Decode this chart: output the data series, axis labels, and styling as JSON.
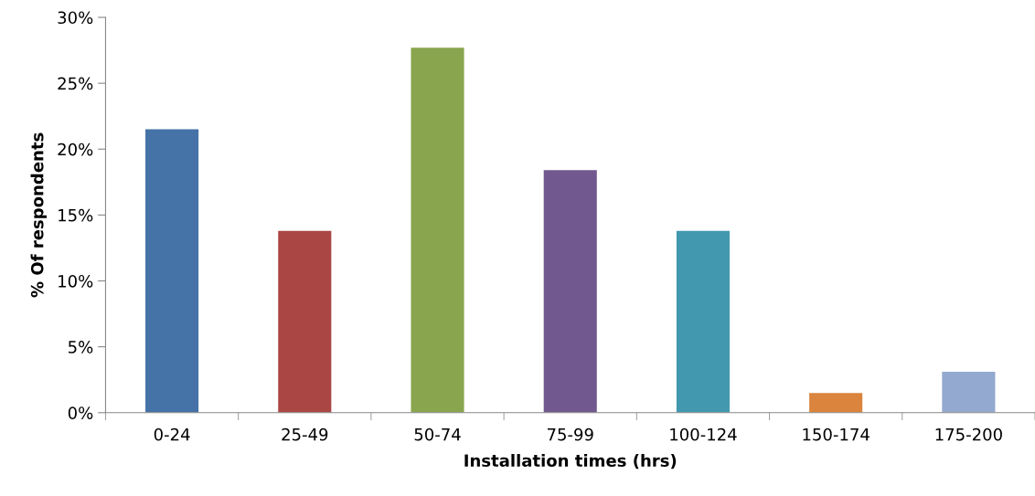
{
  "chart_data": {
    "type": "bar",
    "xlabel": "Installation times (hrs)",
    "ylabel": "% Of respondents",
    "categories": [
      "0-24",
      "25-49",
      "50-74",
      "75-99",
      "100-124",
      "150-174",
      "175-200"
    ],
    "values": [
      21.5,
      13.8,
      27.7,
      18.4,
      13.8,
      1.5,
      3.1
    ],
    "colors": [
      "#4572a7",
      "#aa4643",
      "#89a54e",
      "#71588f",
      "#4198af",
      "#db843d",
      "#93a9cf"
    ],
    "ylim": [
      0,
      30
    ],
    "yticks": [
      {
        "value": 0,
        "label": "0%"
      },
      {
        "value": 5,
        "label": "5%"
      },
      {
        "value": 10,
        "label": "10%"
      },
      {
        "value": 15,
        "label": "15%"
      },
      {
        "value": 20,
        "label": "20%"
      },
      {
        "value": 25,
        "label": "25%"
      },
      {
        "value": 30,
        "label": "30%"
      }
    ],
    "grid": false,
    "legend": false
  }
}
